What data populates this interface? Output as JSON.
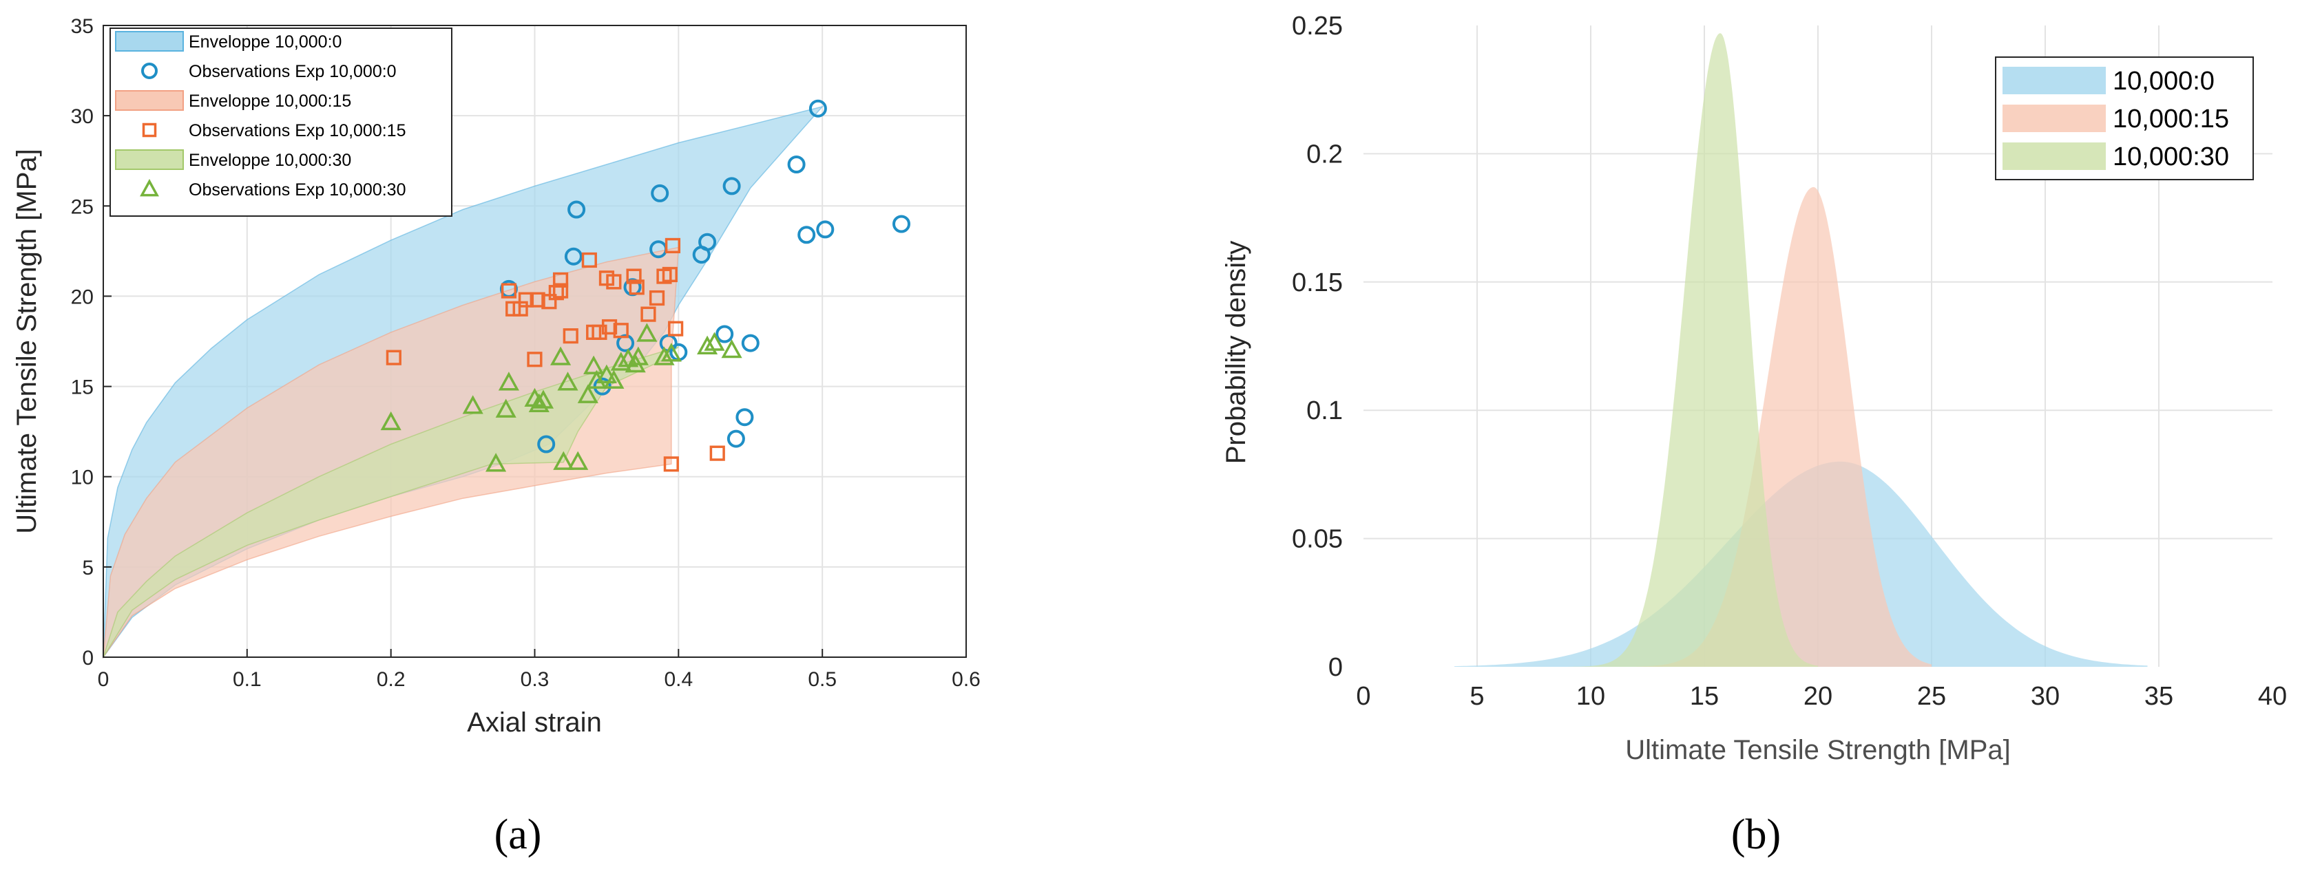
{
  "panels": {
    "a": {
      "caption": "(a)"
    },
    "b": {
      "caption": "(b)"
    }
  },
  "chart_data": [
    {
      "panel": "a",
      "type": "scatter",
      "xlabel": "Axial strain",
      "ylabel": "Ultimate Tensile Strength [MPa]",
      "xlim": [
        0,
        0.6
      ],
      "ylim": [
        0,
        35
      ],
      "xticks": [
        0,
        0.1,
        0.2,
        0.3,
        0.4,
        0.5,
        0.6
      ],
      "xticklabels": [
        "0",
        "0.1",
        "0.2",
        "0.3",
        "0.4",
        "0.5",
        "0.6"
      ],
      "yticks": [
        0,
        5,
        10,
        15,
        20,
        25,
        30,
        35
      ],
      "yticklabels": [
        "0",
        "5",
        "10",
        "15",
        "20",
        "25",
        "30",
        "35"
      ],
      "grid": true,
      "legend_position": "top-left",
      "legend": [
        {
          "label": "Enveloppe 10,000:0",
          "kind": "area",
          "color": "#a8d8ee",
          "edge": "#5ab3df"
        },
        {
          "label": "Observations Exp 10,000:0",
          "kind": "circle",
          "color": "#1f8fc6"
        },
        {
          "label": "Enveloppe 10,000:15",
          "kind": "area",
          "color": "#f8c9b5",
          "edge": "#f2a184"
        },
        {
          "label": "Observations Exp 10,000:15",
          "kind": "square",
          "color": "#ee6a30"
        },
        {
          "label": "Enveloppe 10,000:30",
          "kind": "area",
          "color": "#cfe2ac",
          "edge": "#a3c96a"
        },
        {
          "label": "Observations Exp 10,000:30",
          "kind": "triangle",
          "color": "#76b33c"
        }
      ],
      "envelopes": [
        {
          "name": "Enveloppe 10,000:0",
          "fill": "#a8d8ee",
          "upper": [
            [
              0,
              0
            ],
            [
              0.003,
              6.6
            ],
            [
              0.01,
              9.4
            ],
            [
              0.02,
              11.5
            ],
            [
              0.03,
              13.0
            ],
            [
              0.05,
              15.2
            ],
            [
              0.075,
              17.1
            ],
            [
              0.1,
              18.7
            ],
            [
              0.15,
              21.2
            ],
            [
              0.2,
              23.1
            ],
            [
              0.25,
              24.8
            ],
            [
              0.3,
              26.1
            ],
            [
              0.35,
              27.3
            ],
            [
              0.4,
              28.5
            ],
            [
              0.45,
              29.5
            ],
            [
              0.5,
              30.5
            ]
          ],
          "lower": [
            [
              0.5,
              30.5
            ],
            [
              0.45,
              26.0
            ],
            [
              0.42,
              22.0
            ],
            [
              0.4,
              19.5
            ],
            [
              0.39,
              18.0
            ],
            [
              0.37,
              16.0
            ],
            [
              0.35,
              14.9
            ],
            [
              0.31,
              11.8
            ],
            [
              0.28,
              10.8
            ],
            [
              0.25,
              10.0
            ],
            [
              0.2,
              8.9
            ],
            [
              0.15,
              7.6
            ],
            [
              0.1,
              6.0
            ],
            [
              0.05,
              4.0
            ],
            [
              0.02,
              2.2
            ],
            [
              0,
              0
            ]
          ]
        },
        {
          "name": "Enveloppe 10,000:15",
          "fill": "#f8c9b5",
          "upper": [
            [
              0,
              0
            ],
            [
              0.005,
              4.5
            ],
            [
              0.015,
              6.8
            ],
            [
              0.03,
              8.8
            ],
            [
              0.05,
              10.8
            ],
            [
              0.1,
              13.8
            ],
            [
              0.15,
              16.2
            ],
            [
              0.2,
              18.0
            ],
            [
              0.25,
              19.5
            ],
            [
              0.3,
              20.8
            ],
            [
              0.35,
              21.9
            ],
            [
              0.4,
              22.7
            ]
          ],
          "lower": [
            [
              0.4,
              22.7
            ],
            [
              0.395,
              16.6
            ],
            [
              0.395,
              10.7
            ],
            [
              0.35,
              10.2
            ],
            [
              0.3,
              9.5
            ],
            [
              0.25,
              8.8
            ],
            [
              0.2,
              7.8
            ],
            [
              0.15,
              6.7
            ],
            [
              0.1,
              5.4
            ],
            [
              0.05,
              3.8
            ],
            [
              0.02,
              2.3
            ],
            [
              0,
              0
            ]
          ]
        },
        {
          "name": "Enveloppe 10,000:30",
          "fill": "#cfe2ac",
          "upper": [
            [
              0,
              0
            ],
            [
              0.01,
              2.5
            ],
            [
              0.03,
              4.2
            ],
            [
              0.05,
              5.6
            ],
            [
              0.1,
              8.0
            ],
            [
              0.15,
              10.0
            ],
            [
              0.2,
              11.8
            ],
            [
              0.25,
              13.3
            ],
            [
              0.3,
              14.7
            ],
            [
              0.35,
              16.0
            ],
            [
              0.4,
              17.2
            ]
          ],
          "lower": [
            [
              0.4,
              17.2
            ],
            [
              0.39,
              16.5
            ],
            [
              0.35,
              15.0
            ],
            [
              0.33,
              12.5
            ],
            [
              0.32,
              10.8
            ],
            [
              0.27,
              10.7
            ],
            [
              0.2,
              8.9
            ],
            [
              0.15,
              7.6
            ],
            [
              0.1,
              6.2
            ],
            [
              0.05,
              4.3
            ],
            [
              0.02,
              2.6
            ],
            [
              0,
              0
            ]
          ]
        }
      ],
      "series": [
        {
          "name": "Observations Exp 10,000:0",
          "marker": "circle",
          "color": "#1f8fc6",
          "points": [
            [
              0.282,
              20.4
            ],
            [
              0.308,
              11.8
            ],
            [
              0.327,
              22.2
            ],
            [
              0.329,
              24.8
            ],
            [
              0.347,
              15.0
            ],
            [
              0.363,
              17.4
            ],
            [
              0.368,
              20.5
            ],
            [
              0.386,
              22.6
            ],
            [
              0.387,
              25.7
            ],
            [
              0.393,
              17.4
            ],
            [
              0.4,
              16.9
            ],
            [
              0.416,
              22.3
            ],
            [
              0.42,
              23.0
            ],
            [
              0.432,
              17.9
            ],
            [
              0.437,
              26.1
            ],
            [
              0.44,
              12.1
            ],
            [
              0.446,
              13.3
            ],
            [
              0.45,
              17.4
            ],
            [
              0.482,
              27.3
            ],
            [
              0.489,
              23.4
            ],
            [
              0.497,
              30.4
            ],
            [
              0.502,
              23.7
            ],
            [
              0.555,
              24.0
            ]
          ]
        },
        {
          "name": "Observations Exp 10,000:15",
          "marker": "square",
          "color": "#ee6a30",
          "points": [
            [
              0.202,
              16.6
            ],
            [
              0.282,
              20.3
            ],
            [
              0.285,
              19.3
            ],
            [
              0.29,
              19.3
            ],
            [
              0.294,
              19.8
            ],
            [
              0.3,
              16.5
            ],
            [
              0.302,
              19.8
            ],
            [
              0.31,
              19.7
            ],
            [
              0.315,
              20.2
            ],
            [
              0.318,
              20.3
            ],
            [
              0.318,
              20.9
            ],
            [
              0.325,
              17.8
            ],
            [
              0.338,
              22.0
            ],
            [
              0.341,
              18.0
            ],
            [
              0.345,
              18.0
            ],
            [
              0.35,
              21.0
            ],
            [
              0.352,
              18.3
            ],
            [
              0.355,
              20.8
            ],
            [
              0.36,
              18.1
            ],
            [
              0.369,
              21.1
            ],
            [
              0.371,
              20.5
            ],
            [
              0.379,
              19.0
            ],
            [
              0.385,
              19.9
            ],
            [
              0.39,
              21.1
            ],
            [
              0.394,
              21.2
            ],
            [
              0.395,
              10.7
            ],
            [
              0.396,
              22.8
            ],
            [
              0.398,
              18.2
            ],
            [
              0.427,
              11.3
            ]
          ]
        },
        {
          "name": "Observations Exp 10,000:30",
          "marker": "triangle",
          "color": "#76b33c",
          "points": [
            [
              0.2,
              13.0
            ],
            [
              0.257,
              13.9
            ],
            [
              0.273,
              10.7
            ],
            [
              0.28,
              13.7
            ],
            [
              0.282,
              15.2
            ],
            [
              0.3,
              14.3
            ],
            [
              0.303,
              14.0
            ],
            [
              0.306,
              14.2
            ],
            [
              0.318,
              16.6
            ],
            [
              0.32,
              10.8
            ],
            [
              0.323,
              15.2
            ],
            [
              0.33,
              10.8
            ],
            [
              0.337,
              14.5
            ],
            [
              0.341,
              16.1
            ],
            [
              0.343,
              15.3
            ],
            [
              0.35,
              15.6
            ],
            [
              0.355,
              15.3
            ],
            [
              0.36,
              16.3
            ],
            [
              0.365,
              16.5
            ],
            [
              0.37,
              16.2
            ],
            [
              0.372,
              16.6
            ],
            [
              0.378,
              17.9
            ],
            [
              0.39,
              16.6
            ],
            [
              0.395,
              16.8
            ],
            [
              0.42,
              17.2
            ],
            [
              0.425,
              17.4
            ],
            [
              0.437,
              17.0
            ]
          ]
        }
      ]
    },
    {
      "panel": "b",
      "type": "area",
      "xlabel": "Ultimate Tensile Strength [MPa]",
      "ylabel": "Probability density",
      "xlim": [
        0,
        40
      ],
      "ylim": [
        0,
        0.25
      ],
      "xticks": [
        0,
        5,
        10,
        15,
        20,
        25,
        30,
        35,
        40
      ],
      "xticklabels": [
        "0",
        "5",
        "10",
        "15",
        "20",
        "25",
        "30",
        "35",
        "40"
      ],
      "yticks": [
        0,
        0.05,
        0.1,
        0.15,
        0.2,
        0.25
      ],
      "yticklabels": [
        "0",
        "0.05",
        "0.1",
        "0.15",
        "0.2",
        "0.25"
      ],
      "grid": true,
      "legend_position": "top-right",
      "series": [
        {
          "name": "10,000:0",
          "color": "#a8d8ee",
          "mode": 21.0,
          "peak": 0.08,
          "sigma_left": 5.0,
          "sigma_right": 4.2,
          "x_min": 4,
          "x_max": 34.5
        },
        {
          "name": "10,000:15",
          "color": "#f8c9b5",
          "mode": 19.8,
          "peak": 0.187,
          "sigma_left": 2.0,
          "sigma_right": 1.6,
          "x_min": 12,
          "x_max": 25
        },
        {
          "name": "10,000:30",
          "color": "#cfe2ac",
          "mode": 15.7,
          "peak": 0.247,
          "sigma_left": 1.55,
          "sigma_right": 1.2,
          "x_min": 9,
          "x_max": 20
        }
      ]
    }
  ]
}
